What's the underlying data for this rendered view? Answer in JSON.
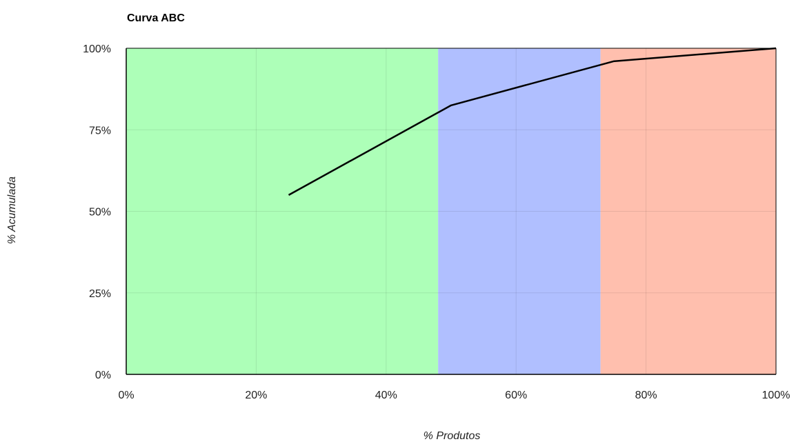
{
  "chart_data": {
    "type": "line",
    "title": "Curva ABC",
    "xlabel": "% Produtos",
    "ylabel": "% Acumulada",
    "xlim": [
      0,
      100
    ],
    "ylim": [
      0,
      100
    ],
    "x_ticks": [
      "0%",
      "20%",
      "40%",
      "60%",
      "80%",
      "100%"
    ],
    "y_ticks": [
      "0%",
      "25%",
      "50%",
      "75%",
      "100%"
    ],
    "x_tick_values": [
      0,
      20,
      40,
      60,
      80,
      100
    ],
    "y_tick_values": [
      0,
      25,
      50,
      75,
      100
    ],
    "grid": true,
    "regions": [
      {
        "from": 0,
        "to": 48,
        "color": "#adffb8"
      },
      {
        "from": 48,
        "to": 73,
        "color": "#b0bfff"
      },
      {
        "from": 73,
        "to": 100,
        "color": "#ffbfae"
      }
    ],
    "series": [
      {
        "color": "#000000",
        "x": [
          25,
          50,
          75,
          100
        ],
        "y": [
          55,
          82.5,
          96,
          100
        ]
      }
    ]
  }
}
